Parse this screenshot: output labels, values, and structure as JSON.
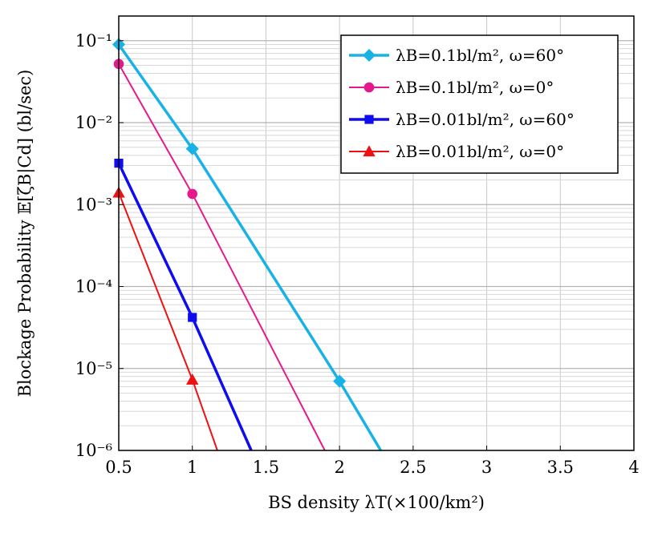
{
  "chart_data": {
    "type": "line",
    "xlabel": "BS density λT(×100/km²)",
    "ylabel": "Blockage Probability 𝔼[ζB|Cd] (bl/sec)",
    "xlim": [
      0.5,
      4
    ],
    "ylim": [
      1e-06,
      0.2
    ],
    "yscale": "log",
    "x_ticks": [
      "0.5",
      "1",
      "1.5",
      "2",
      "2.5",
      "3",
      "3.5",
      "4"
    ],
    "y_ticks": [
      "10⁻⁶",
      "10⁻⁵",
      "10⁻⁴",
      "10⁻³",
      "10⁻²",
      "10⁻¹"
    ],
    "grid": true,
    "legend_position": "top-right",
    "series": [
      {
        "name": "λB=0.1bl/m², ω=60°",
        "color": "#19b2e6",
        "marker": "diamond",
        "line_width": 3.5,
        "x": [
          0.5,
          1,
          2,
          2.28
        ],
        "y": [
          0.09,
          0.0048,
          7e-06,
          1e-06
        ],
        "marker_points": [
          0,
          1,
          2
        ]
      },
      {
        "name": "λB=0.1bl/m², ω=0°",
        "color": "#e6198c",
        "marker": "circle",
        "line_width": 2,
        "x": [
          0.5,
          1,
          1.9
        ],
        "y": [
          0.052,
          0.00135,
          1e-06
        ],
        "marker_points": [
          0,
          1
        ]
      },
      {
        "name": "λB=0.01bl/m², ω=60°",
        "color": "#0d0df0",
        "marker": "square",
        "line_width": 3.5,
        "x": [
          0.5,
          1,
          1.4
        ],
        "y": [
          0.0032,
          4.2e-05,
          1e-06
        ],
        "marker_points": [
          0,
          1
        ]
      },
      {
        "name": "λB=0.01bl/m², ω=0°",
        "color": "#ee1111",
        "marker": "triangle",
        "line_width": 2,
        "x": [
          0.5,
          1,
          1.17
        ],
        "y": [
          0.0014,
          7.3e-06,
          1e-06
        ],
        "marker_points": [
          0,
          1
        ]
      }
    ]
  }
}
